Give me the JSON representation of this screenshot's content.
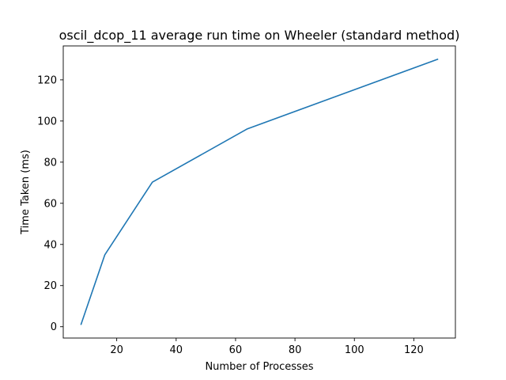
{
  "chart_data": {
    "type": "line",
    "title": "oscil_dcop_11 average run time on Wheeler (standard method)",
    "xlabel": "Number of Processes",
    "ylabel": "Time Taken (ms)",
    "xlim": [
      2,
      134
    ],
    "ylim": [
      -5.5,
      136.5
    ],
    "x_ticks": [
      20,
      40,
      60,
      80,
      100,
      120
    ],
    "y_ticks": [
      0,
      20,
      40,
      60,
      80,
      100,
      120
    ],
    "grid": false,
    "series": [
      {
        "color": "#1f77b4",
        "x": [
          8,
          16,
          32,
          64,
          128
        ],
        "y": [
          1.2,
          35,
          70.3,
          96.2,
          130
        ]
      }
    ]
  }
}
